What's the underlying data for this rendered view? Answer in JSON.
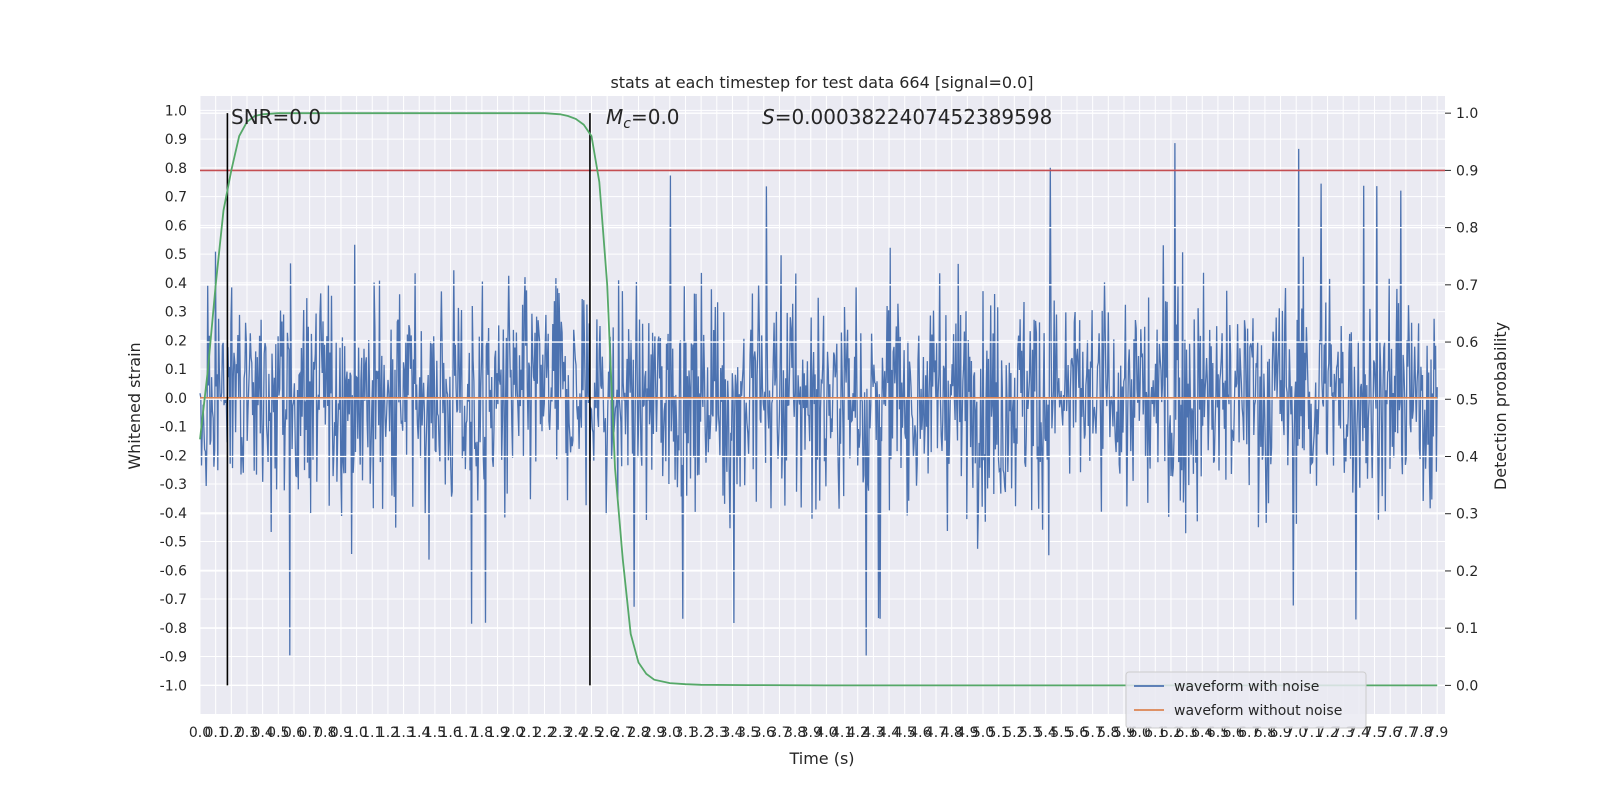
{
  "chart_data": {
    "type": "line",
    "title": "stats at each timestep for test data 664 [signal=0.0]",
    "xlabel": "Time (s)",
    "ylabel": "Whitened strain",
    "y2label": "Detection probability",
    "xlim": [
      0.0,
      7.95
    ],
    "ylim": [
      -1.1,
      1.05
    ],
    "y2lim": [
      -0.05,
      1.03
    ],
    "x_ticks": [
      "0.0",
      "0.1",
      "0.2",
      "0.3",
      "0.4",
      "0.5",
      "0.6",
      "0.7",
      "0.8",
      "0.9",
      "1.0",
      "1.1",
      "1.2",
      "1.3",
      "1.4",
      "1.5",
      "1.6",
      "1.7",
      "1.8",
      "1.9",
      "2.0",
      "2.1",
      "2.2",
      "2.3",
      "2.4",
      "2.5",
      "2.6",
      "2.7",
      "2.8",
      "2.9",
      "3.0",
      "3.1",
      "3.2",
      "3.3",
      "3.4",
      "3.5",
      "3.6",
      "3.7",
      "3.8",
      "3.9",
      "4.0",
      "4.1",
      "4.2",
      "4.3",
      "4.4",
      "4.5",
      "4.6",
      "4.7",
      "4.8",
      "4.9",
      "5.0",
      "5.1",
      "5.2",
      "5.3",
      "5.4",
      "5.5",
      "5.6",
      "5.7",
      "5.8",
      "5.9",
      "6.0",
      "6.1",
      "6.2",
      "6.3",
      "6.4",
      "6.5",
      "6.6",
      "6.7",
      "6.8",
      "6.9",
      "7.0",
      "7.1",
      "7.2",
      "7.3",
      "7.4",
      "7.5",
      "7.6",
      "7.7",
      "7.8",
      "7.9"
    ],
    "y_ticks": [
      "1.0",
      "0.9",
      "0.8",
      "0.7",
      "0.6",
      "0.5",
      "0.4",
      "0.3",
      "0.2",
      "0.1",
      "0.0",
      "-0.1",
      "-0.2",
      "-0.3",
      "-0.4",
      "-0.5",
      "-0.6",
      "-0.7",
      "-0.8",
      "-0.9",
      "-1.0"
    ],
    "y2_ticks": [
      "1.0",
      "0.9",
      "0.8",
      "0.7",
      "0.6",
      "0.5",
      "0.4",
      "0.3",
      "0.2",
      "0.1",
      "0.0"
    ],
    "series": [
      {
        "name": "waveform with noise",
        "color": "#4c72b0",
        "kind": "noise",
        "approx_range": [
          -1.0,
          0.94
        ]
      },
      {
        "name": "waveform without noise",
        "color": "#dd8452",
        "kind": "flat",
        "value": 0.0
      },
      {
        "color": "#55a868",
        "axis": "right",
        "kind": "probability",
        "x": [
          0.0,
          0.05,
          0.1,
          0.15,
          0.2,
          0.25,
          0.3,
          0.35,
          0.4,
          0.5,
          0.6,
          0.8,
          1.0,
          1.5,
          2.0,
          2.2,
          2.3,
          2.35,
          2.4,
          2.45,
          2.5,
          2.55,
          2.6,
          2.65,
          2.7,
          2.75,
          2.8,
          2.85,
          2.9,
          3.0,
          3.1,
          3.2,
          3.5,
          4.0,
          5.0,
          6.0,
          7.0,
          7.9
        ],
        "values": [
          0.43,
          0.55,
          0.7,
          0.83,
          0.9,
          0.96,
          0.985,
          0.995,
          0.998,
          1.0,
          1.0,
          1.0,
          1.0,
          1.0,
          1.0,
          1.0,
          0.998,
          0.995,
          0.99,
          0.98,
          0.96,
          0.88,
          0.7,
          0.38,
          0.22,
          0.09,
          0.04,
          0.02,
          0.01,
          0.004,
          0.002,
          0.001,
          0.0005,
          0.0,
          0.0,
          0.0,
          0.0,
          0.0
        ]
      }
    ],
    "threshold": {
      "value": 0.9,
      "axis": "right",
      "color": "#c44e52"
    },
    "vlines": [
      0.175,
      2.49
    ],
    "annotations": {
      "snr": "SNR=0.0",
      "mc_label": "M",
      "mc_sub": "c",
      "mc_value": "=0.0",
      "s_label": "S",
      "s_value": "=0.0003822407452389598"
    },
    "legend": {
      "placement": "lower-right",
      "entries": [
        "waveform with noise",
        "waveform without noise"
      ]
    },
    "grid": true,
    "background": "#eaeaf2"
  }
}
